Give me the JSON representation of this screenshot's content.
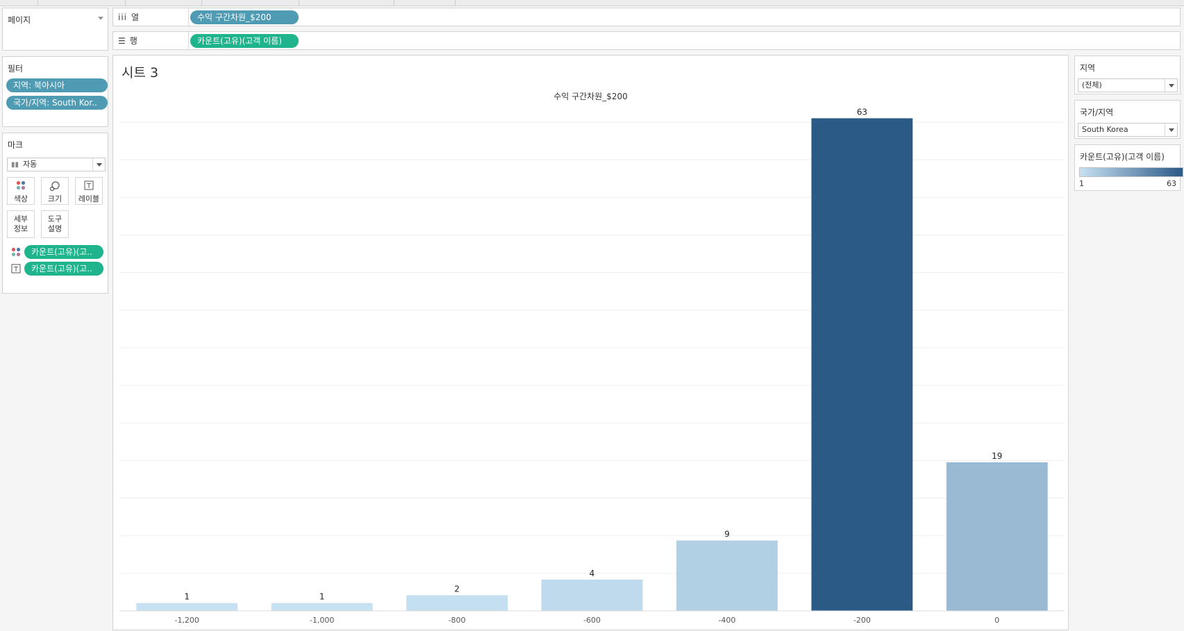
{
  "shelves": {
    "pages_label": "페이지",
    "columns_label": "열",
    "rows_label": "행",
    "columns_pill": "수익 구간차원_$200",
    "rows_pill": "카운트(고유)(고객 이름)"
  },
  "filters": {
    "title": "필터",
    "items": [
      "지역: 북아시아",
      "국가/지역: South Kor.."
    ]
  },
  "marks": {
    "title": "마크",
    "type": "자동",
    "buttons": {
      "color": "색상",
      "size": "크기",
      "label": "레이블",
      "detail": "세부\n정보",
      "tooltip": "도구\n설명"
    },
    "detail_line1": "세부",
    "detail_line2": "정보",
    "tooltip_line1": "도구",
    "tooltip_line2": "설명",
    "color_pill": "카운트(고유)(고..",
    "label_pill": "카운트(고유)(고.."
  },
  "sheet": {
    "title": "시트 3",
    "axis_title": "수익 구간차원_$200"
  },
  "right_panel": {
    "region": {
      "title": "지역",
      "value": "(전체)"
    },
    "country": {
      "title": "국가/지역",
      "value": "South Korea"
    },
    "legend": {
      "title": "카운트(고유)(고객 이름)",
      "min": "1",
      "max": "63",
      "colors": [
        "#c6e1f1",
        "#2c5a87"
      ]
    }
  },
  "chart_data": {
    "type": "bar",
    "categories": [
      "-1,200",
      "-1,000",
      "-800",
      "-600",
      "-400",
      "-200",
      "0"
    ],
    "values": [
      1,
      1,
      2,
      4,
      9,
      63,
      19
    ],
    "title": "수익 구간차원_$200",
    "xlabel": "",
    "ylabel": "",
    "ylim": [
      0,
      65
    ],
    "grid": true,
    "color_scale": [
      "#c6e1f1",
      "#2c5a87"
    ]
  }
}
